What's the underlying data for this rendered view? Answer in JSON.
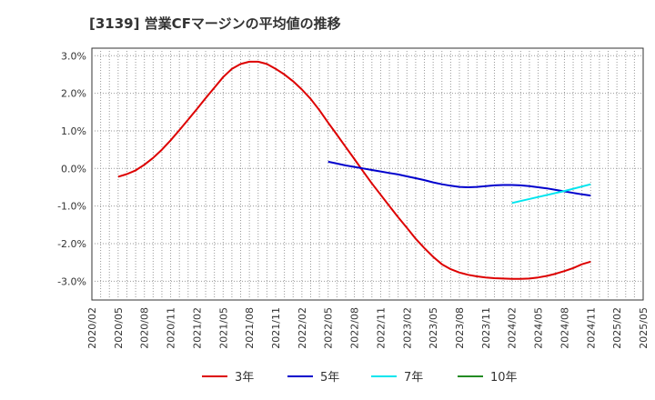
{
  "chart_data": {
    "type": "line",
    "title": "[3139]  営業CFマージンの平均値の推移",
    "xlabel": "",
    "ylabel": "",
    "ylim": [
      -3.5,
      3.2
    ],
    "grid": true,
    "legend_position": "bottom",
    "x_ticks": [
      "2020/02",
      "2020/05",
      "2020/08",
      "2020/11",
      "2021/02",
      "2021/05",
      "2021/08",
      "2021/11",
      "2022/02",
      "2022/05",
      "2022/08",
      "2022/11",
      "2023/02",
      "2023/05",
      "2023/08",
      "2023/11",
      "2024/02",
      "2024/05",
      "2024/08",
      "2024/11",
      "2025/02",
      "2025/05"
    ],
    "y_ticks": [
      3.0,
      2.0,
      1.0,
      0.0,
      -1.0,
      -2.0,
      -3.0
    ],
    "y_tick_labels": [
      "3.0%",
      "2.0%",
      "1.0%",
      "0.0%",
      "-1.0%",
      "-2.0%",
      "-3.0%"
    ],
    "series": [
      {
        "name": "3年",
        "color": "#dd0000",
        "x": [
          "2020/05",
          "2020/06",
          "2020/07",
          "2020/08",
          "2020/09",
          "2020/10",
          "2020/11",
          "2020/12",
          "2021/01",
          "2021/02",
          "2021/03",
          "2021/04",
          "2021/05",
          "2021/06",
          "2021/07",
          "2021/08",
          "2021/09",
          "2021/10",
          "2021/11",
          "2021/12",
          "2022/01",
          "2022/02",
          "2022/03",
          "2022/04",
          "2022/05",
          "2022/06",
          "2022/07",
          "2022/08",
          "2022/09",
          "2022/10",
          "2022/11",
          "2022/12",
          "2023/01",
          "2023/02",
          "2023/03",
          "2023/04",
          "2023/05",
          "2023/06",
          "2023/07",
          "2023/08",
          "2023/09",
          "2023/10",
          "2023/11",
          "2023/12",
          "2024/01",
          "2024/02",
          "2024/03",
          "2024/04",
          "2024/05",
          "2024/06",
          "2024/07",
          "2024/08",
          "2024/09",
          "2024/10",
          "2024/11"
        ],
        "values": [
          -0.22,
          -0.15,
          -0.05,
          0.1,
          0.28,
          0.5,
          0.75,
          1.02,
          1.3,
          1.58,
          1.87,
          2.15,
          2.43,
          2.65,
          2.78,
          2.84,
          2.84,
          2.78,
          2.65,
          2.5,
          2.32,
          2.1,
          1.85,
          1.55,
          1.22,
          0.9,
          0.57,
          0.25,
          -0.08,
          -0.4,
          -0.7,
          -1.0,
          -1.3,
          -1.58,
          -1.87,
          -2.12,
          -2.35,
          -2.55,
          -2.68,
          -2.77,
          -2.83,
          -2.87,
          -2.9,
          -2.92,
          -2.93,
          -2.94,
          -2.94,
          -2.93,
          -2.9,
          -2.86,
          -2.8,
          -2.73,
          -2.65,
          -2.55,
          -2.48
        ]
      },
      {
        "name": "5年",
        "color": "#0000cc",
        "x": [
          "2022/05",
          "2022/06",
          "2022/07",
          "2022/08",
          "2022/09",
          "2022/10",
          "2022/11",
          "2022/12",
          "2023/01",
          "2023/02",
          "2023/03",
          "2023/04",
          "2023/05",
          "2023/06",
          "2023/07",
          "2023/08",
          "2023/09",
          "2023/10",
          "2023/11",
          "2023/12",
          "2024/01",
          "2024/02",
          "2024/03",
          "2024/04",
          "2024/05",
          "2024/06",
          "2024/07",
          "2024/08",
          "2024/09",
          "2024/10",
          "2024/11"
        ],
        "values": [
          0.18,
          0.13,
          0.08,
          0.04,
          0.0,
          -0.04,
          -0.08,
          -0.12,
          -0.16,
          -0.21,
          -0.26,
          -0.31,
          -0.37,
          -0.42,
          -0.46,
          -0.49,
          -0.5,
          -0.49,
          -0.47,
          -0.45,
          -0.44,
          -0.44,
          -0.45,
          -0.47,
          -0.5,
          -0.53,
          -0.57,
          -0.61,
          -0.65,
          -0.69,
          -0.72
        ]
      },
      {
        "name": "7年",
        "color": "#00e5ee",
        "x": [
          "2024/02",
          "2024/05",
          "2024/08",
          "2024/11"
        ],
        "values": [
          -0.92,
          -0.76,
          -0.6,
          -0.42
        ]
      },
      {
        "name": "10年",
        "color": "#228b22",
        "x": [],
        "values": []
      }
    ]
  }
}
